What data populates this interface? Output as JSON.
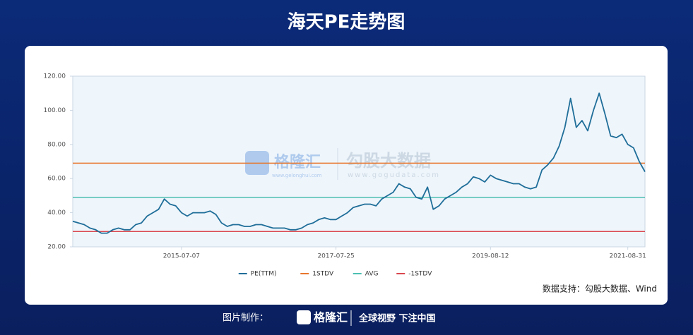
{
  "chart_data": {
    "type": "line",
    "title": "海天PE走势图",
    "categories": [
      null,
      null,
      null,
      null,
      null,
      null,
      null,
      null,
      null,
      null,
      null,
      null,
      null,
      null,
      null,
      null,
      null,
      null,
      null,
      "2015-07-07",
      null,
      null,
      null,
      null,
      null,
      null,
      null,
      null,
      null,
      null,
      null,
      null,
      null,
      null,
      null,
      null,
      null,
      null,
      null,
      null,
      null,
      null,
      null,
      null,
      null,
      null,
      "2017-07-25",
      null,
      null,
      null,
      null,
      null,
      null,
      null,
      null,
      null,
      null,
      null,
      null,
      null,
      null,
      null,
      null,
      null,
      null,
      null,
      null,
      null,
      null,
      null,
      null,
      null,
      null,
      "2019-08-12",
      null,
      null,
      null,
      null,
      null,
      null,
      null,
      null,
      null,
      null,
      null,
      null,
      null,
      null,
      null,
      null,
      null,
      null,
      null,
      null,
      null,
      null,
      null,
      "2021-08-31",
      null,
      null,
      null
    ],
    "series": [
      {
        "name": "PE(TTM)",
        "color": "#1f6e99",
        "values": [
          35,
          34,
          33,
          31,
          30,
          28,
          28,
          30,
          31,
          30,
          30,
          33,
          34,
          38,
          40,
          42,
          48,
          45,
          44,
          40,
          38,
          40,
          40,
          40,
          41,
          39,
          34,
          32,
          33,
          33,
          32,
          32,
          33,
          33,
          32,
          31,
          31,
          31,
          30,
          30,
          31,
          33,
          34,
          36,
          37,
          36,
          36,
          38,
          40,
          43,
          44,
          45,
          45,
          44,
          48,
          50,
          52,
          57,
          55,
          54,
          49,
          48,
          55,
          42,
          44,
          48,
          50,
          52,
          55,
          57,
          61,
          60,
          58,
          62,
          60,
          59,
          58,
          57,
          57,
          55,
          54,
          55,
          65,
          68,
          72,
          79,
          90,
          107,
          90,
          94,
          88,
          100,
          110,
          98,
          85,
          84,
          86,
          80,
          78,
          70,
          64
        ]
      }
    ],
    "reference_lines": [
      {
        "name": "1STDV",
        "color": "#e8772e",
        "value": 69
      },
      {
        "name": "AVG",
        "color": "#4dbfb1",
        "value": 49
      },
      {
        "name": "-1STDV",
        "color": "#d9474f",
        "value": 29
      }
    ],
    "ylim": [
      20,
      120
    ],
    "yticks": [
      {
        "value": 20,
        "label": "20.00"
      },
      {
        "value": 40,
        "label": "40.00"
      },
      {
        "value": 60,
        "label": "60.00"
      },
      {
        "value": 80,
        "label": "80.00"
      },
      {
        "value": 100,
        "label": "100.00"
      },
      {
        "value": 120,
        "label": "120.00"
      }
    ],
    "grid": false,
    "legend": "bottom",
    "source": "数据支持：勾股大数据、Wind"
  },
  "watermark": {
    "brand": "格隆汇",
    "brand_url": "www.gelonghui.com",
    "data_brand": "勾股大数据",
    "data_url": "www.gogudata.com"
  },
  "footer": {
    "made_by": "图片制作：",
    "brand": "格隆汇",
    "slogan": "全球视野 下注中国"
  }
}
